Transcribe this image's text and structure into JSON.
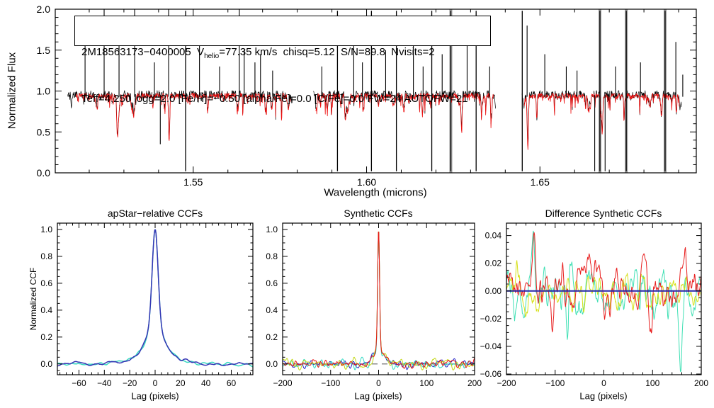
{
  "figure": {
    "background": "#ffffff",
    "description": "APOGEE spectrum fit summary plot with three cross-correlation-function panels"
  },
  "chart_data": [
    {
      "id": "spectrum",
      "type": "line",
      "title": "",
      "xlabel": "Wavelength (microns)",
      "ylabel": "Normalized Flux",
      "xlim": [
        1.5102,
        1.6951
      ],
      "ylim": [
        0.0,
        2.0
      ],
      "xticks": [
        1.55,
        1.6,
        1.65
      ],
      "xminor": 0.01,
      "xtickdec": 2,
      "yticks": [
        0.0,
        0.5,
        1.0,
        1.5,
        2.0
      ],
      "yminor": 0.1,
      "ytickdec": 1,
      "annotation": {
        "line1_pre": "2M18563173−0400005  V",
        "line1_sub": "helio",
        "line1_post": "=77.35 km/s  chisq=5.12  S/N=89.8  Nvisits=2",
        "line2": "Teff=4,250 logg=2.0 [Fe/H]=−0.50 [alpha/Fe]=0.0 [C/Fe]=0.0 FW=24 AUTOFW=21"
      },
      "continuum": 0.95,
      "segments": [
        [
          1.5138,
          1.5786
        ],
        [
          1.5847,
          1.6372
        ],
        [
          1.6448,
          1.6908
        ]
      ],
      "series": [
        {
          "name": "observed-spectrum",
          "color": "#000000",
          "lw": 0.7
        },
        {
          "name": "synthetic-fit-spectrum",
          "color": "#ee1111",
          "lw": 0.8
        }
      ],
      "grey_bars": [
        1.6243,
        1.6673,
        1.6749,
        1.6861
      ],
      "grey_color": "#9a9a9a",
      "sky_lines": [
        {
          "wl": 1.5188,
          "t": "up",
          "h": 1.75
        },
        {
          "wl": 1.5243,
          "t": "up",
          "h": 2.0
        },
        {
          "wl": 1.5286,
          "t": "up",
          "h": 1.55
        },
        {
          "wl": 1.5331,
          "t": "up",
          "h": 2.0
        },
        {
          "wl": 1.5388,
          "t": "up",
          "h": 1.35
        },
        {
          "wl": 1.5405,
          "t": "down",
          "h": 0.35
        },
        {
          "wl": 1.5429,
          "t": "up",
          "h": 2.0
        },
        {
          "wl": 1.5478,
          "t": "full"
        },
        {
          "wl": 1.5518,
          "t": "up",
          "h": 1.9
        },
        {
          "wl": 1.5576,
          "t": "up",
          "h": 1.3
        },
        {
          "wl": 1.5633,
          "t": "up",
          "h": 2.0
        },
        {
          "wl": 1.5647,
          "t": "up",
          "h": 1.5
        },
        {
          "wl": 1.5678,
          "t": "up",
          "h": 1.35
        },
        {
          "wl": 1.5694,
          "t": "up",
          "h": 1.45
        },
        {
          "wl": 1.5729,
          "t": "up",
          "h": 1.25
        },
        {
          "wl": 1.5871,
          "t": "up",
          "h": 1.3
        },
        {
          "wl": 1.5916,
          "t": "full"
        },
        {
          "wl": 1.5963,
          "t": "up",
          "h": 1.9
        },
        {
          "wl": 1.5988,
          "t": "up",
          "h": 1.35
        },
        {
          "wl": 1.6014,
          "t": "full"
        },
        {
          "wl": 1.6055,
          "t": "up",
          "h": 1.5
        },
        {
          "wl": 1.6086,
          "t": "full"
        },
        {
          "wl": 1.6135,
          "t": "up",
          "h": 1.6
        },
        {
          "wl": 1.6163,
          "t": "up",
          "h": 1.3
        },
        {
          "wl": 1.6188,
          "t": "full"
        },
        {
          "wl": 1.6218,
          "t": "up",
          "h": 1.45
        },
        {
          "wl": 1.6243,
          "t": "full"
        },
        {
          "wl": 1.629,
          "t": "up",
          "h": 1.7
        },
        {
          "wl": 1.6316,
          "t": "full"
        },
        {
          "wl": 1.6355,
          "t": "up",
          "h": 1.3
        },
        {
          "wl": 1.6449,
          "t": "full"
        },
        {
          "wl": 1.6463,
          "t": "up",
          "h": 1.8
        },
        {
          "wl": 1.6514,
          "t": "up",
          "h": 1.45
        },
        {
          "wl": 1.6576,
          "t": "up",
          "h": 1.3
        },
        {
          "wl": 1.6607,
          "t": "up",
          "h": 1.25
        },
        {
          "wl": 1.6658,
          "t": "down",
          "h": 0.02
        },
        {
          "wl": 1.6673,
          "t": "full"
        },
        {
          "wl": 1.6688,
          "t": "down",
          "h": 0.02
        },
        {
          "wl": 1.6718,
          "t": "up",
          "h": 1.3
        },
        {
          "wl": 1.6749,
          "t": "full"
        },
        {
          "wl": 1.679,
          "t": "up",
          "h": 1.35
        },
        {
          "wl": 1.6861,
          "t": "full"
        },
        {
          "wl": 1.6892,
          "t": "up",
          "h": 1.6
        },
        {
          "wl": 1.6912,
          "t": "up",
          "h": 1.2
        }
      ]
    },
    {
      "id": "apstar_ccf",
      "type": "line",
      "title": "apStar−relative CCFs",
      "xlabel": "Lag (pixels)",
      "ylabel": "Normalized CCF",
      "xlim": [
        -77,
        77
      ],
      "ylim": [
        -0.08,
        1.047
      ],
      "xticks": [
        -60,
        -40,
        -20,
        0,
        20,
        40,
        60
      ],
      "xminor": 5,
      "xtickdec": 0,
      "yticks": [
        0.0,
        0.2,
        0.4,
        0.6,
        0.8,
        1.0
      ],
      "yminor": 0.05,
      "ytickdec": 1,
      "n": 360,
      "peak": [
        {
          "a": 0.72,
          "s": 2.3
        },
        {
          "a": 0.2,
          "s": 6.5
        },
        {
          "a": 0.08,
          "s": 16
        }
      ],
      "peak_center": 0,
      "peak_height": 1.0,
      "features": [],
      "series": [
        {
          "name": "cyan-ccf",
          "color": "#38d8c0",
          "lw": 1.5,
          "seed": 11,
          "hw": 4,
          "amp": 0.022,
          "features": []
        },
        {
          "name": "blue-ccf",
          "color": "#3434b4",
          "lw": 1.5,
          "seed": 23,
          "hw": 4,
          "amp": 0.018,
          "features": []
        }
      ]
    },
    {
      "id": "synth_ccf",
      "type": "line",
      "title": "Synthetic CCFs",
      "xlabel": "Lag (pixels)",
      "ylabel": "",
      "xlim": [
        -200,
        200
      ],
      "ylim": [
        -0.08,
        1.047
      ],
      "xticks": [
        -200,
        -100,
        0,
        100,
        200
      ],
      "xminor": 20,
      "xtickdec": 0,
      "yticks": [
        0.0,
        0.2,
        0.4,
        0.6,
        0.8,
        1.0
      ],
      "yminor": 0.05,
      "ytickdec": 1,
      "n": 430,
      "zero_line": {
        "style": "dashed",
        "color": "#666666",
        "lw": 1.2,
        "layer": "under"
      },
      "peak": [
        {
          "a": 0.88,
          "s": 2.0
        },
        {
          "a": 0.12,
          "s": 5.2
        }
      ],
      "peak_center": 0,
      "peak_height": 1.0,
      "features": [
        {
          "x": -12,
          "a": 0.05,
          "w": 5
        },
        {
          "x": 13,
          "a": 0.06,
          "w": 5
        }
      ],
      "series": [
        {
          "name": "blue-ccf",
          "color": "#2323c8",
          "lw": 1.0,
          "seed": 41,
          "hw": 2,
          "amp": 0.042,
          "features": []
        },
        {
          "name": "cyan-ccf",
          "color": "#2fd9c3",
          "lw": 1.0,
          "seed": 57,
          "hw": 2,
          "amp": 0.05,
          "features": []
        },
        {
          "name": "yellow-ccf",
          "color": "#c3d714",
          "lw": 1.0,
          "seed": 69,
          "hw": 2,
          "amp": 0.05,
          "features": []
        },
        {
          "name": "red-ccf",
          "color": "#e81414",
          "lw": 1.0,
          "seed": 83,
          "hw": 2,
          "amp": 0.048,
          "features": []
        }
      ]
    },
    {
      "id": "diff_ccf",
      "type": "line",
      "title": "Difference Synthetic CCFs",
      "xlabel": "Lag (pixels)",
      "ylabel": "",
      "xlim": [
        -200,
        200
      ],
      "ylim": [
        -0.0605,
        0.049
      ],
      "xticks": [
        -200,
        -100,
        0,
        100,
        200
      ],
      "xminor": 20,
      "xtickdec": 0,
      "yticks": [
        0.04,
        0.02,
        0.0,
        -0.02,
        -0.04,
        -0.06
      ],
      "yminor": 0.005,
      "ytickdec": 2,
      "n": 430,
      "zero_line": {
        "style": "solid",
        "color": "#2626aa",
        "lw": 2,
        "layer": "over"
      },
      "peak": [],
      "peak_center": 0,
      "peak_height": 0,
      "features": [],
      "series": [
        {
          "name": "cyan-diff",
          "color": "#3fe0b4",
          "lw": 1.0,
          "seed": 101,
          "hw": 3,
          "amp": 0.021,
          "seed2": 102,
          "hw2": 1,
          "amp2": 0.012,
          "features": [
            {
              "x": -145,
              "a": 0.04,
              "w": 3
            },
            {
              "x": 158,
              "a": -0.042,
              "w": 3
            },
            {
              "x": -75,
              "a": -0.028,
              "w": 2.5
            },
            {
              "x": 122,
              "a": 0.022,
              "w": 3
            }
          ]
        },
        {
          "name": "yellow-diff",
          "color": "#d6e018",
          "lw": 1.0,
          "seed": 113,
          "hw": 3,
          "amp": 0.014,
          "seed2": 114,
          "hw2": 1,
          "amp2": 0.008,
          "features": [
            {
              "x": -160,
              "a": -0.014,
              "w": 4
            },
            {
              "x": 80,
              "a": 0.014,
              "w": 4
            },
            {
              "x": 185,
              "a": -0.012,
              "w": 4
            }
          ]
        },
        {
          "name": "red-diff",
          "color": "#e82020",
          "lw": 1.0,
          "seed": 127,
          "hw": 3,
          "amp": 0.021,
          "seed2": 128,
          "hw2": 1,
          "amp2": 0.012,
          "features": [
            {
              "x": -105,
              "a": -0.036,
              "w": 2.5
            },
            {
              "x": -145,
              "a": 0.028,
              "w": 3
            },
            {
              "x": 168,
              "a": 0.028,
              "w": 4
            },
            {
              "x": 95,
              "a": -0.028,
              "w": 3
            },
            {
              "x": -42,
              "a": 0.03,
              "w": 3
            }
          ]
        }
      ]
    }
  ]
}
